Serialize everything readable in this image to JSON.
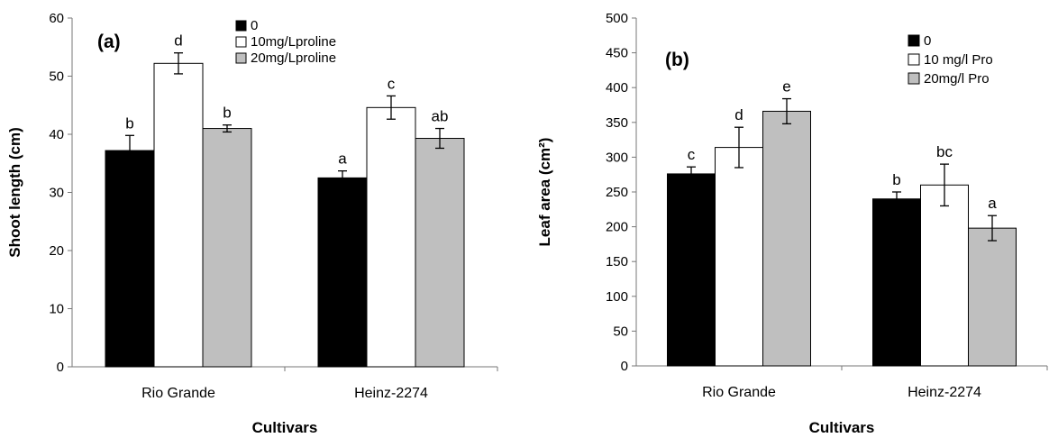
{
  "chart_data": [
    {
      "type": "bar",
      "panel_label": "(a)",
      "title": "",
      "xlabel": "Cultivars",
      "ylabel": "Shoot length (cm)",
      "ylim": [
        0,
        60
      ],
      "yticks": [
        0,
        10,
        20,
        30,
        40,
        50,
        60
      ],
      "categories": [
        "Rio Grande",
        "Heinz-2274"
      ],
      "grid": false,
      "legend_position": "top-center",
      "series": [
        {
          "name": "0",
          "color": "#000000",
          "values": [
            37.2,
            32.5
          ],
          "errors": [
            2.6,
            1.2
          ],
          "letters": [
            "b",
            "a"
          ]
        },
        {
          "name": "10mg/Lproline",
          "color": "#ffffff",
          "values": [
            52.2,
            44.6
          ],
          "errors": [
            1.8,
            2.0
          ],
          "letters": [
            "d",
            "c"
          ]
        },
        {
          "name": "20mg/Lproline",
          "color": "#bfbfbf",
          "values": [
            41.0,
            39.3
          ],
          "errors": [
            0.6,
            1.7
          ],
          "letters": [
            "b",
            "ab"
          ]
        }
      ]
    },
    {
      "type": "bar",
      "panel_label": "(b)",
      "title": "",
      "xlabel": "Cultivars",
      "ylabel": "Leaf area (cm²)",
      "ylim": [
        0,
        500
      ],
      "yticks": [
        0,
        50,
        100,
        150,
        200,
        250,
        300,
        350,
        400,
        450,
        500
      ],
      "categories": [
        "Rio Grande",
        "Heinz-2274"
      ],
      "grid": false,
      "legend_position": "top-right",
      "series": [
        {
          "name": "0",
          "color": "#000000",
          "values": [
            276,
            240
          ],
          "errors": [
            10,
            10
          ],
          "letters": [
            "c",
            "b"
          ]
        },
        {
          "name": "10 mg/l Pro",
          "color": "#ffffff",
          "values": [
            314,
            260
          ],
          "errors": [
            29,
            30
          ],
          "letters": [
            "d",
            "bc"
          ]
        },
        {
          "name": "20mg/l Pro",
          "color": "#bfbfbf",
          "values": [
            366,
            198
          ],
          "errors": [
            18,
            18
          ],
          "letters": [
            "e",
            "a"
          ]
        }
      ]
    }
  ]
}
